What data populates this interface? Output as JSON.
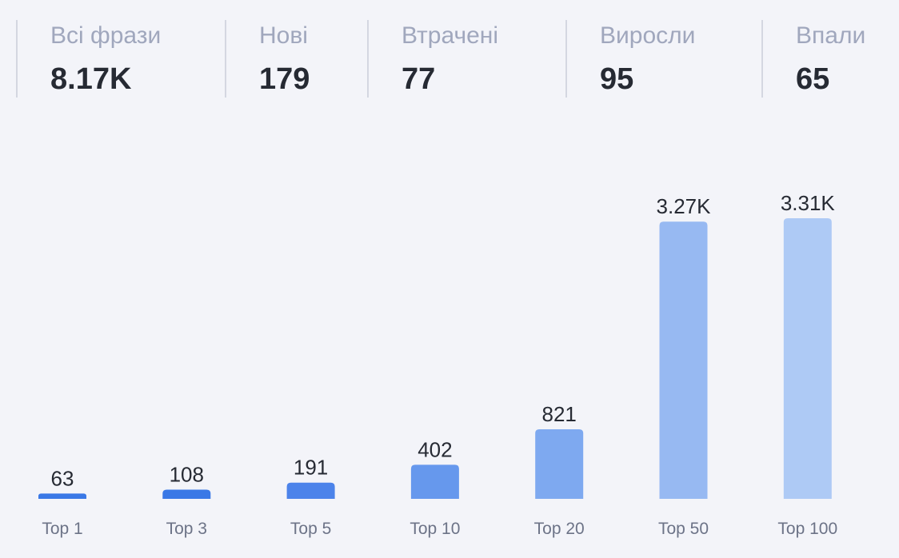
{
  "stats": [
    {
      "label": "Всі фрази",
      "value": "8.17K"
    },
    {
      "label": "Нові",
      "value": "179"
    },
    {
      "label": "Втрачені",
      "value": "77"
    },
    {
      "label": "Виросли",
      "value": "95"
    },
    {
      "label": "Впали",
      "value": "65"
    }
  ],
  "chart_data": {
    "type": "bar",
    "categories": [
      "Top 1",
      "Top 3",
      "Top 5",
      "Top 10",
      "Top 20",
      "Top 50",
      "Top 100"
    ],
    "values": [
      63,
      108,
      191,
      402,
      821,
      3270,
      3310
    ],
    "value_labels": [
      "63",
      "108",
      "191",
      "402",
      "821",
      "3.27K",
      "3.31K"
    ],
    "colors": [
      "#3a78e6",
      "#3a78e6",
      "#4c83ea",
      "#6698ed",
      "#7ea9f0",
      "#97b9f2",
      "#aecaf5"
    ],
    "title": "",
    "xlabel": "",
    "ylabel": "",
    "grid": false
  }
}
